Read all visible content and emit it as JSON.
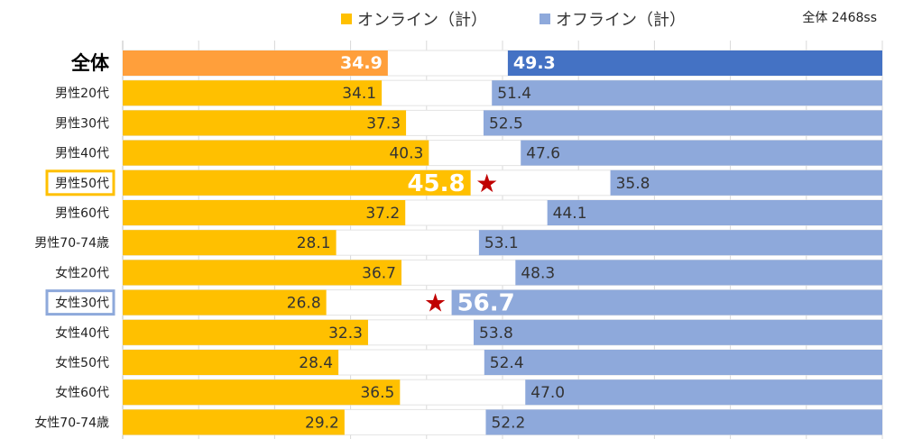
{
  "legend": {
    "online": "オンライン（計）",
    "offline": "オフライン（計）"
  },
  "sample_note": "全体 2468ss",
  "colors": {
    "online": "#FFC000",
    "online_total": "#FF9F3B",
    "offline": "#8EA9DB",
    "offline_total": "#4472C4",
    "highlight_online_border": "#FFC000",
    "highlight_offline_border": "#8EA9DB",
    "star": "#C00000"
  },
  "chart_data": {
    "type": "bar",
    "orientation": "horizontal",
    "categories": [
      "全体",
      "男性20代",
      "男性30代",
      "男性40代",
      "男性50代",
      "男性60代",
      "男性70-74歳",
      "女性20代",
      "女性30代",
      "女性40代",
      "女性50代",
      "女性60代",
      "女性70-74歳"
    ],
    "series": [
      {
        "name": "オンライン（計）",
        "values": [
          34.9,
          34.1,
          37.3,
          40.3,
          45.8,
          37.2,
          28.1,
          36.7,
          26.8,
          32.3,
          28.4,
          36.5,
          29.2
        ]
      },
      {
        "name": "オフライン（計）",
        "values": [
          49.3,
          51.4,
          52.5,
          47.6,
          35.8,
          44.1,
          53.1,
          48.3,
          56.7,
          53.8,
          52.4,
          47.0,
          52.2
        ]
      }
    ],
    "value_labels": {
      "online": [
        "34.9",
        "34.1",
        "37.3",
        "40.3",
        "45.8",
        "37.2",
        "28.1",
        "36.7",
        "26.8",
        "32.3",
        "28.4",
        "36.5",
        "29.2"
      ],
      "offline": [
        "49.3",
        "51.4",
        "52.5",
        "47.6",
        "35.8",
        "44.1",
        "53.1",
        "48.3",
        "56.7",
        "53.8",
        "52.4",
        "47.0",
        "52.2"
      ]
    },
    "xlim": [
      0,
      100
    ],
    "online_from": "left",
    "offline_from": "right",
    "highlights": [
      {
        "category": "男性50代",
        "series": "オンライン（計）"
      },
      {
        "category": "女性30代",
        "series": "オフライン（計）"
      }
    ],
    "star_symbol": "★",
    "title": "",
    "xlabel": "",
    "ylabel": "",
    "grid": true,
    "legend_position": "top"
  }
}
